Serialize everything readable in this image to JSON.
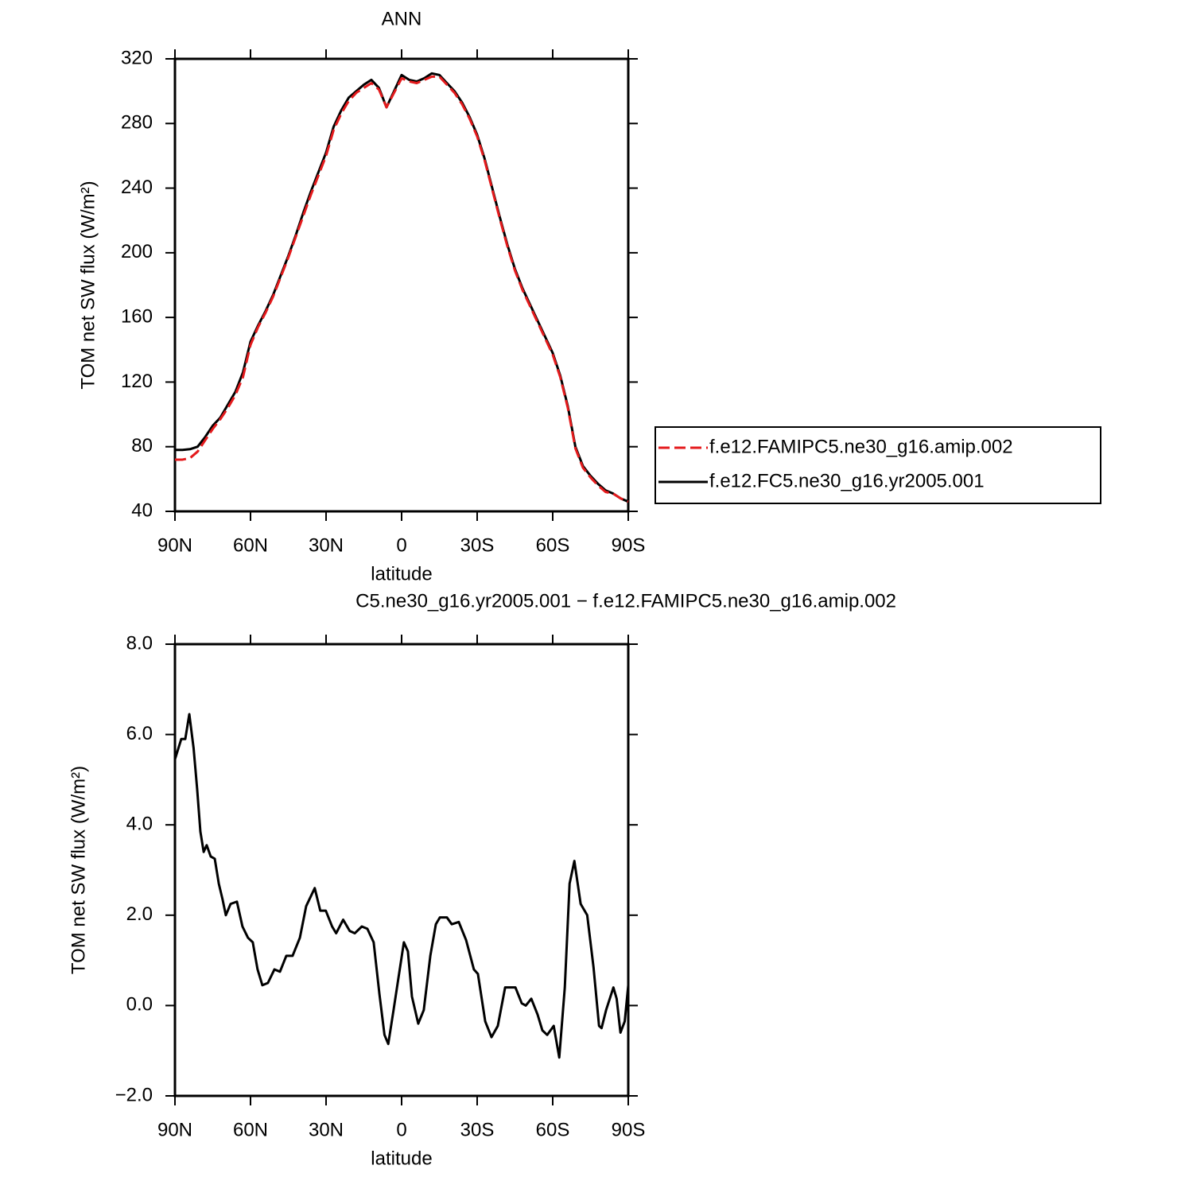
{
  "chart_data": [
    {
      "type": "line",
      "title": "ANN",
      "xlabel": "latitude",
      "ylabel": "TOM net SW flux (W/m²)",
      "xlim": [
        90,
        -90
      ],
      "ylim": [
        40,
        320
      ],
      "xticks": [
        {
          "value": 90,
          "label": "90N"
        },
        {
          "value": 60,
          "label": "60N"
        },
        {
          "value": 30,
          "label": "30N"
        },
        0,
        {
          "value": -30,
          "label": "30S"
        },
        {
          "value": -60,
          "label": "60S"
        },
        {
          "value": -90,
          "label": "90S"
        }
      ],
      "yticks": [
        40,
        80,
        120,
        160,
        200,
        240,
        280,
        320
      ],
      "legend": "right",
      "x": [
        90,
        87,
        84,
        81,
        78,
        75,
        72,
        69,
        66,
        63,
        60,
        57,
        54,
        51,
        48,
        45,
        42,
        39,
        36,
        33,
        30,
        27,
        24,
        21,
        18,
        15,
        12,
        9,
        6,
        3,
        0,
        -3,
        -6,
        -9,
        -12,
        -15,
        -18,
        -21,
        -24,
        -27,
        -30,
        -33,
        -36,
        -39,
        -42,
        -45,
        -48,
        -51,
        -54,
        -57,
        -60,
        -63,
        -66,
        -69,
        -72,
        -75,
        -78,
        -81,
        -84,
        -87,
        -90
      ],
      "series": [
        {
          "name": "f.e12.FAMIPC5.ne30_g16.amip.002",
          "color": "#e41a1c",
          "dashed": true,
          "values": [
            72,
            72,
            73,
            77,
            84,
            91,
            97,
            104,
            112,
            123,
            143,
            154,
            163,
            173,
            185,
            197,
            210,
            223,
            236,
            248,
            260,
            276,
            286,
            294,
            299,
            302,
            305,
            301,
            290,
            299,
            308,
            306,
            305,
            307,
            309,
            309,
            304,
            299,
            292,
            283,
            272,
            257,
            239,
            221,
            204,
            189,
            177,
            167,
            157,
            147,
            137,
            123,
            104,
            79,
            67,
            61,
            56,
            52,
            51,
            48,
            46
          ]
        },
        {
          "name": "f.e12.FC5.ne30_g16.yr2005.001",
          "color": "#000000",
          "dashed": false,
          "values": [
            78,
            78,
            78.5,
            80,
            86,
            93,
            98,
            106,
            114,
            126,
            145,
            155,
            164,
            174,
            186,
            198,
            211,
            225,
            238,
            250,
            262,
            278,
            288,
            296,
            300,
            304,
            307,
            302,
            290,
            300,
            310,
            307,
            306,
            308,
            311,
            310,
            305,
            300,
            293,
            284,
            273,
            258,
            240,
            222,
            205,
            190,
            178,
            168,
            158,
            148,
            138,
            124,
            105,
            80,
            68,
            62,
            57,
            53,
            51,
            48,
            46
          ]
        }
      ]
    },
    {
      "type": "line",
      "title": "C5.ne30_g16.yr2005.001 − f.e12.FAMIPC5.ne30_g16.amip.002",
      "xlabel": "latitude",
      "ylabel": "TOM net SW flux (W/m²)",
      "xlim": [
        90,
        -90
      ],
      "ylim": [
        -2,
        8
      ],
      "xticks": [
        {
          "value": 90,
          "label": "90N"
        },
        {
          "value": 60,
          "label": "60N"
        },
        {
          "value": 30,
          "label": "30N"
        },
        0,
        {
          "value": -30,
          "label": "30S"
        },
        {
          "value": -60,
          "label": "60S"
        },
        {
          "value": -90,
          "label": "90S"
        }
      ],
      "yticks": [
        {
          "value": -2,
          "label": "−2.0"
        },
        {
          "value": 0,
          "label": "0.0"
        },
        {
          "value": 2,
          "label": "2.0"
        },
        {
          "value": 4,
          "label": "4.0"
        },
        {
          "value": 6,
          "label": "6.0"
        },
        {
          "value": 8,
          "label": "8.0"
        }
      ],
      "color": "#000000",
      "x": [
        90,
        87.5,
        85.9,
        84.3,
        82.6,
        81.2,
        79.9,
        78.6,
        77.4,
        75.8,
        74.2,
        72.6,
        71.1,
        69.8,
        67.9,
        65.4,
        63.2,
        61,
        59.1,
        57.2,
        55.3,
        53.1,
        50.5,
        48.3,
        45.8,
        43.3,
        40.4,
        37.9,
        34.5,
        32.3,
        30.1,
        27.6,
        26,
        23.2,
        20.6,
        18.6,
        15.8,
        13.6,
        11.1,
        8.8,
        6.8,
        5.3,
        3.2,
        -0.9,
        -2.5,
        -4.1,
        -6.6,
        -8.8,
        -11.4,
        -13.6,
        -15.2,
        -18,
        -19.9,
        -22.7,
        -25.6,
        -28.7,
        -30.3,
        -33.2,
        -35.7,
        -38.2,
        -41.1,
        -43.3,
        -45.2,
        -47.7,
        -49.3,
        -51.5,
        -54,
        -55.9,
        -57.8,
        -60.4,
        -62.6,
        -64.8,
        -66.7,
        -68.6,
        -71.1,
        -73.7,
        -76.2,
        -78.4,
        -79.4,
        -81.2,
        -84.1,
        -85.4,
        -86.9,
        -88.6,
        -90
      ],
      "values": [
        5.45,
        5.9,
        5.9,
        6.45,
        5.7,
        4.8,
        3.85,
        3.4,
        3.55,
        3.3,
        3.25,
        2.7,
        2.35,
        2,
        2.25,
        2.3,
        1.75,
        1.5,
        1.4,
        0.8,
        0.45,
        0.5,
        0.8,
        0.75,
        1.1,
        1.1,
        1.5,
        2.2,
        2.6,
        2.1,
        2.1,
        1.75,
        1.6,
        1.9,
        1.65,
        1.6,
        1.75,
        1.7,
        1.4,
        0.25,
        -0.65,
        -0.85,
        -0.1,
        1.4,
        1.2,
        0.2,
        -0.4,
        -0.1,
        1.1,
        1.8,
        1.95,
        1.95,
        1.8,
        1.85,
        1.45,
        0.8,
        0.7,
        -0.35,
        -0.7,
        -0.45,
        0.4,
        0.4,
        0.4,
        0.05,
        0,
        0.15,
        -0.2,
        -0.55,
        -0.65,
        -0.45,
        -1.15,
        0.4,
        2.7,
        3.2,
        2.25,
        2,
        0.85,
        -0.45,
        -0.5,
        -0.1,
        0.4,
        0.15,
        -0.6,
        -0.35,
        0.45
      ]
    }
  ]
}
